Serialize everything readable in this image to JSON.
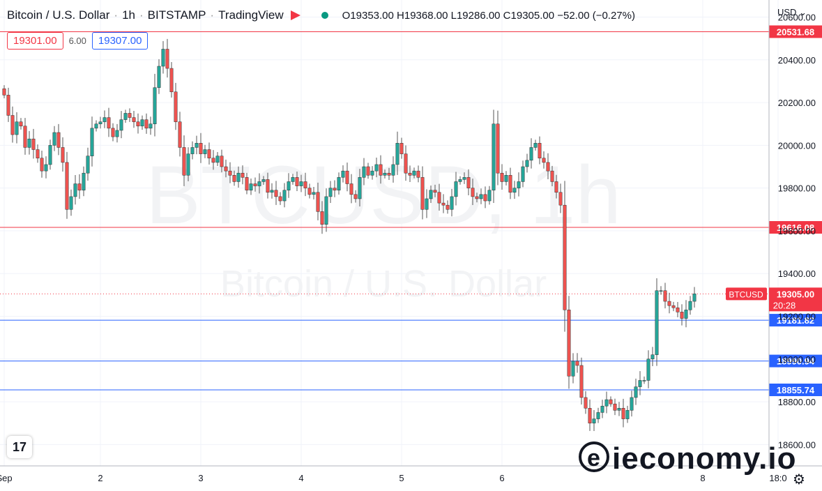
{
  "header": {
    "symbol": "Bitcoin / U.S. Dollar",
    "interval": "1h",
    "exchange": "BITSTAMP",
    "source": "TradingView",
    "ohlc": "O19353.00  H19368.00  L19286.00  C19305.00  −52.00 (−0.27%)"
  },
  "trade": {
    "bid": "19301.00",
    "spread": "6.00",
    "ask": "19307.00"
  },
  "currency": "USD",
  "currency_icon": "chevron-down-icon",
  "watermark": {
    "big": "BTCUSD, 1h",
    "small": "Bitcoin / U.S. Dollar"
  },
  "brand": {
    "mark": "e",
    "text": "ieconomy.io"
  },
  "settings_icon": "gear-icon",
  "colors": {
    "up": "#26a69a",
    "down": "#ef5350",
    "resistance": "#f23645",
    "support": "#2962ff",
    "current": "#f23645"
  },
  "chart_data": {
    "type": "candlestick",
    "ylim": [
      18500,
      20680
    ],
    "y_ticks": [
      18600,
      18800,
      19000,
      19200,
      19400,
      19600,
      19800,
      20000,
      20200,
      20400,
      20600
    ],
    "y_tick_labels": [
      "18600.00",
      "18800.00",
      "19000.00",
      "19200.00",
      "19400.00",
      "19600.00",
      "19800.00",
      "20000.00",
      "20200.00",
      "20400.00",
      "20600.00"
    ],
    "x_ticks": [
      {
        "label": "Sep",
        "bar": 0
      },
      {
        "label": "2",
        "bar": 23
      },
      {
        "label": "3",
        "bar": 47
      },
      {
        "label": "4",
        "bar": 71
      },
      {
        "label": "5",
        "bar": 95
      },
      {
        "label": "6",
        "bar": 119
      },
      {
        "label": "8",
        "bar": 167
      },
      {
        "label": "18:0",
        "bar": 185
      }
    ],
    "resistance_levels": [
      {
        "label": "20531.68",
        "value": 20531.68
      },
      {
        "label": "19616.08",
        "value": 19616.08
      }
    ],
    "support_levels": [
      {
        "label": "19181.82",
        "value": 19181.82
      },
      {
        "label": "18990.94",
        "value": 18990.94
      },
      {
        "label": "18855.74",
        "value": 18855.74
      }
    ],
    "last_price": {
      "symbol": "BTCUSD",
      "label": "19305.00",
      "value": 19305.0,
      "countdown": "20:28"
    },
    "close": [
      20235,
      20140,
      20050,
      20110,
      20090,
      19990,
      20030,
      19980,
      19940,
      19880,
      19910,
      20000,
      20060,
      19990,
      19920,
      19700,
      19760,
      19820,
      19790,
      19870,
      19950,
      20080,
      20100,
      20110,
      20130,
      20080,
      20040,
      20070,
      20120,
      20150,
      20130,
      20110,
      20090,
      20120,
      20080,
      20100,
      20270,
      20370,
      20450,
      20360,
      20250,
      20110,
      19990,
      19860,
      19960,
      19990,
      20010,
      19960,
      19980,
      19940,
      19920,
      19950,
      19900,
      19880,
      19860,
      19830,
      19870,
      19850,
      19790,
      19820,
      19810,
      19830,
      19840,
      19780,
      19790,
      19760,
      19740,
      19790,
      19830,
      19850,
      19810,
      19830,
      19800,
      19770,
      19780,
      19690,
      19630,
      19760,
      19800,
      19790,
      19850,
      19880,
      19820,
      19770,
      19750,
      19850,
      19900,
      19860,
      19880,
      19910,
      19860,
      19870,
      19860,
      19910,
      20010,
      19960,
      19870,
      19860,
      19880,
      19850,
      19700,
      19750,
      19790,
      19780,
      19730,
      19720,
      19700,
      19760,
      19830,
      19840,
      19850,
      19800,
      19760,
      19750,
      19770,
      19740,
      19790,
      20100,
      19870,
      19830,
      19860,
      19780,
      19800,
      19830,
      19900,
      19930,
      19990,
      20010,
      19940,
      19920,
      19880,
      19830,
      19780,
      19720,
      19230,
      18920,
      18990,
      18970,
      18820,
      18770,
      18700,
      18720,
      18750,
      18780,
      18810,
      18790,
      18760,
      18770,
      18720,
      18760,
      18820,
      18870,
      18900,
      18900,
      19000,
      19020,
      19320,
      19320,
      19270,
      19250,
      19240,
      19220,
      19190,
      19230,
      19270,
      19305
    ]
  }
}
